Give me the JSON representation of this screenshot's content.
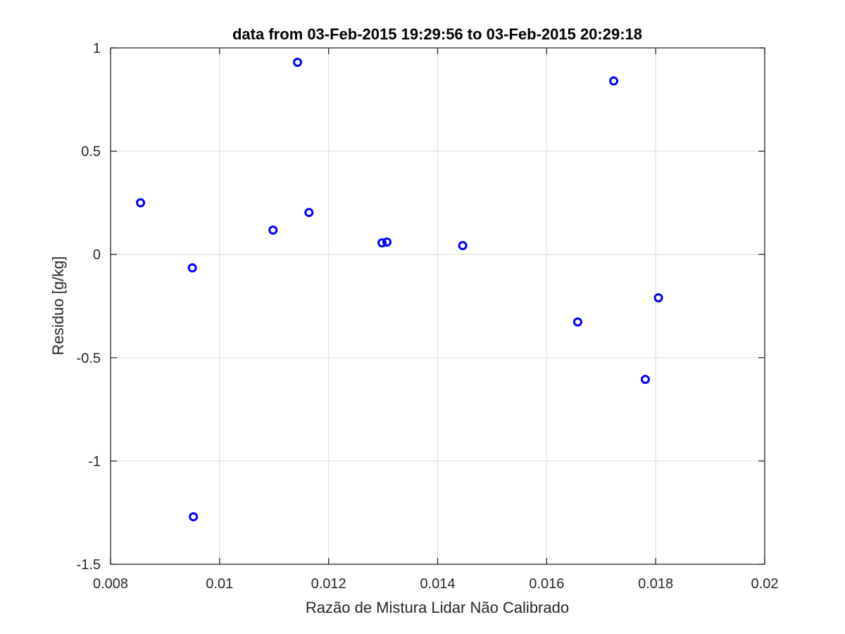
{
  "chart_data": {
    "type": "scatter",
    "title": "data from 03-Feb-2015 19:29:56 to 03-Feb-2015 20:29:18",
    "xlabel": "Razão de Mistura Lidar Não Calibrado",
    "ylabel": "Residuo [g/kg]",
    "xlim": [
      0.008,
      0.02
    ],
    "ylim": [
      -1.5,
      1
    ],
    "xticks": [
      0.008,
      0.01,
      0.012,
      0.014,
      0.016,
      0.018,
      0.02
    ],
    "xtick_labels": [
      "0.008",
      "0.01",
      "0.012",
      "0.014",
      "0.016",
      "0.018",
      "0.02"
    ],
    "yticks": [
      -1.5,
      -1,
      -0.5,
      0,
      0.5,
      1
    ],
    "ytick_labels": [
      "-1.5",
      "-1",
      "-0.5",
      "0",
      "0.5",
      "1"
    ],
    "grid": true,
    "marker": "o",
    "marker_color": "#0000ff",
    "grid_color": "#dcdcdc",
    "axis_color": "#262626",
    "series": [
      {
        "marker": "circle",
        "points": [
          {
            "x": 0.00855,
            "y": 0.25
          },
          {
            "x": 0.0095,
            "y": -0.065
          },
          {
            "x": 0.00952,
            "y": -1.27
          },
          {
            "x": 0.01098,
            "y": 0.118
          },
          {
            "x": 0.01143,
            "y": 0.93
          },
          {
            "x": 0.01164,
            "y": 0.203
          },
          {
            "x": 0.01298,
            "y": 0.056
          },
          {
            "x": 0.01307,
            "y": 0.06
          },
          {
            "x": 0.01446,
            "y": 0.043
          },
          {
            "x": 0.01657,
            "y": -0.327
          },
          {
            "x": 0.01723,
            "y": 0.84
          },
          {
            "x": 0.01781,
            "y": -0.605
          },
          {
            "x": 0.01805,
            "y": -0.21
          }
        ]
      }
    ]
  }
}
